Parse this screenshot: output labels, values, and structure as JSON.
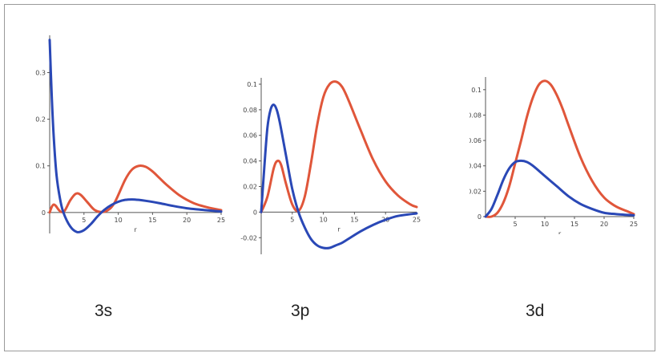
{
  "colors": {
    "red": "#e0563a",
    "blue": "#2a48b6",
    "axis": "#555555",
    "text": "#444444"
  },
  "chart_data": [
    {
      "type": "line",
      "title": "3s",
      "xlabel": "r",
      "ylabel": "",
      "xlim": [
        0,
        25
      ],
      "ylim": [
        -0.045,
        0.38
      ],
      "x_ticks": [
        "5",
        "10",
        "15",
        "20",
        "25"
      ],
      "y_ticks": [
        "0",
        "0.1",
        "0.2",
        "0.3"
      ],
      "series": [
        {
          "color": "red",
          "x": [
            0,
            0.3,
            0.6,
            0.9,
            1.3,
            1.7,
            2.2,
            3.0,
            3.8,
            4.5,
            5.5,
            6.5,
            7.5,
            8.5,
            9.5,
            11,
            12,
            13,
            14,
            15,
            16,
            17,
            19,
            21,
            23,
            25
          ],
          "y": [
            0,
            0.012,
            0.017,
            0.014,
            0.006,
            0.001,
            0.004,
            0.026,
            0.04,
            0.038,
            0.022,
            0.006,
            0.001,
            0.005,
            0.022,
            0.07,
            0.092,
            0.1,
            0.098,
            0.088,
            0.074,
            0.06,
            0.036,
            0.02,
            0.011,
            0.005
          ]
        },
        {
          "color": "blue",
          "x": [
            0,
            0.3,
            0.6,
            1.0,
            1.5,
            2.0,
            3.0,
            4.0,
            5.0,
            6.0,
            7.0,
            8.0,
            9.0,
            10.0,
            11.0,
            12.0,
            13.0,
            14.0,
            16.0,
            18.0,
            20.0,
            22.0,
            25.0
          ],
          "y": [
            0.37,
            0.25,
            0.16,
            0.08,
            0.03,
            0.0,
            -0.03,
            -0.042,
            -0.038,
            -0.025,
            -0.008,
            0.006,
            0.016,
            0.023,
            0.027,
            0.028,
            0.027,
            0.025,
            0.02,
            0.014,
            0.009,
            0.006,
            0.002
          ]
        }
      ]
    },
    {
      "type": "line",
      "title": "3p",
      "xlabel": "r",
      "ylabel": "",
      "xlim": [
        0,
        25
      ],
      "ylim": [
        -0.033,
        0.105
      ],
      "x_ticks": [
        "5",
        "10",
        "15",
        "20",
        "25"
      ],
      "y_ticks": [
        "-0.02",
        "0",
        "0.02",
        "0.04",
        "0.06",
        "0.08",
        "0.1"
      ],
      "series": [
        {
          "color": "red",
          "x": [
            0,
            1.0,
            2.0,
            2.6,
            3.2,
            4.0,
            5.0,
            6.0,
            7.0,
            8.0,
            9.0,
            10.0,
            11.0,
            12.0,
            13.0,
            14.0,
            16.0,
            18.0,
            20.0,
            22.0,
            24.0,
            25.0
          ],
          "y": [
            0,
            0.012,
            0.034,
            0.04,
            0.037,
            0.022,
            0.006,
            0.001,
            0.012,
            0.038,
            0.068,
            0.09,
            0.1,
            0.102,
            0.098,
            0.088,
            0.064,
            0.041,
            0.024,
            0.013,
            0.006,
            0.004
          ]
        },
        {
          "color": "blue",
          "x": [
            0,
            0.5,
            1.0,
            1.5,
            2.0,
            2.5,
            3.0,
            4.0,
            5.0,
            6.0,
            7.0,
            8.0,
            9.0,
            10.0,
            11.0,
            12.0,
            13.0,
            14.0,
            16.0,
            18.0,
            20.0,
            22.0,
            25.0
          ],
          "y": [
            0,
            0.035,
            0.066,
            0.08,
            0.084,
            0.08,
            0.07,
            0.044,
            0.018,
            0.0,
            -0.012,
            -0.021,
            -0.026,
            -0.028,
            -0.028,
            -0.026,
            -0.024,
            -0.021,
            -0.015,
            -0.01,
            -0.006,
            -0.003,
            -0.001
          ]
        }
      ]
    },
    {
      "type": "line",
      "title": "3d",
      "xlabel": "r",
      "ylabel": "",
      "xlim": [
        0,
        25
      ],
      "ylim": [
        0,
        0.11
      ],
      "x_ticks": [
        "5",
        "10",
        "15",
        "20",
        "25"
      ],
      "y_ticks": [
        "0",
        "0.02",
        "0.04",
        "0.06",
        "0.08",
        "0.1"
      ],
      "series": [
        {
          "color": "red",
          "x": [
            0,
            1.0,
            2.0,
            3.0,
            4.0,
            5.0,
            6.0,
            7.0,
            8.0,
            9.0,
            10.0,
            11.0,
            12.0,
            13.0,
            14.0,
            16.0,
            18.0,
            20.0,
            22.0,
            24.0,
            25.0
          ],
          "y": [
            0,
            0.0,
            0.003,
            0.011,
            0.024,
            0.042,
            0.06,
            0.079,
            0.094,
            0.104,
            0.107,
            0.104,
            0.096,
            0.085,
            0.072,
            0.047,
            0.028,
            0.015,
            0.008,
            0.004,
            0.002
          ]
        },
        {
          "color": "blue",
          "x": [
            0,
            1.0,
            2.0,
            3.0,
            4.0,
            5.0,
            6.0,
            7.0,
            8.0,
            10.0,
            12.0,
            14.0,
            16.0,
            18.0,
            20.0,
            22.0,
            25.0
          ],
          "y": [
            0,
            0.006,
            0.017,
            0.029,
            0.038,
            0.043,
            0.044,
            0.043,
            0.04,
            0.032,
            0.024,
            0.016,
            0.01,
            0.006,
            0.003,
            0.002,
            0.001
          ]
        }
      ]
    }
  ]
}
